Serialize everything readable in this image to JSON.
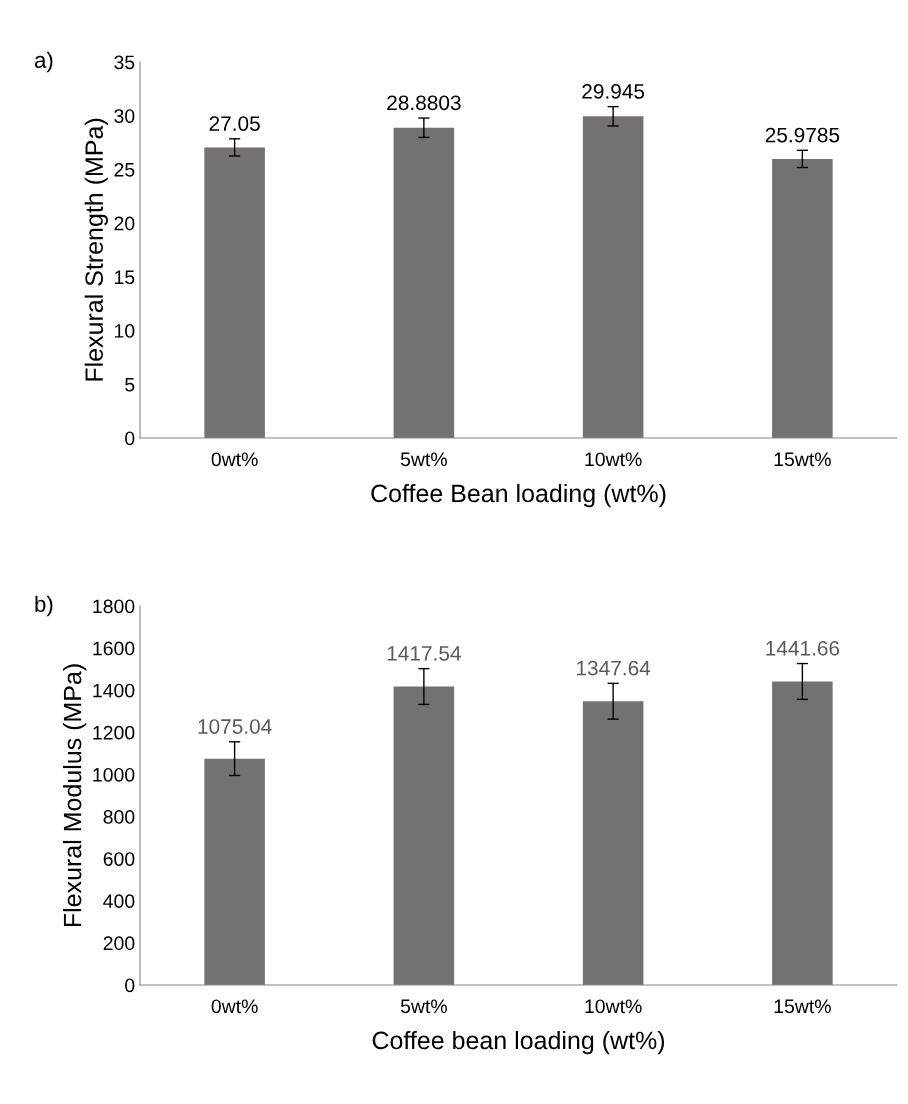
{
  "chart_data": [
    {
      "type": "bar",
      "ylabel": "Flexural Strength (MPa)",
      "xlabel": "Coffee Bean loading (wt%)",
      "annotations": [
        "a)"
      ],
      "categories": [
        "0wt%",
        "5wt%",
        "10wt%",
        "15wt%"
      ],
      "values": [
        27.05,
        28.8803,
        29.945,
        25.9785
      ],
      "errors": [
        0.8,
        0.9,
        0.9,
        0.8
      ],
      "color": "#767171",
      "ylim": [
        0,
        35
      ],
      "yticks": [
        0,
        5,
        10,
        15,
        20,
        25,
        30,
        35
      ],
      "data_labels": true,
      "grid": false,
      "legend": false
    },
    {
      "type": "bar",
      "ylabel": "Flexural Modulus (MPa)",
      "xlabel": "Coffee bean loading (wt%)",
      "annotations": [
        "b)"
      ],
      "categories": [
        "0wt%",
        "5wt%",
        "10wt%",
        "15wt%"
      ],
      "values": [
        1075.04,
        1417.54,
        1347.64,
        1441.66
      ],
      "errors": [
        80,
        85,
        85,
        85
      ],
      "color": "#767171",
      "ylim": [
        0,
        1800
      ],
      "yticks": [
        0,
        200,
        400,
        600,
        800,
        1000,
        1200,
        1400,
        1600,
        1800
      ],
      "data_labels": true,
      "grid": false,
      "legend": false
    }
  ]
}
